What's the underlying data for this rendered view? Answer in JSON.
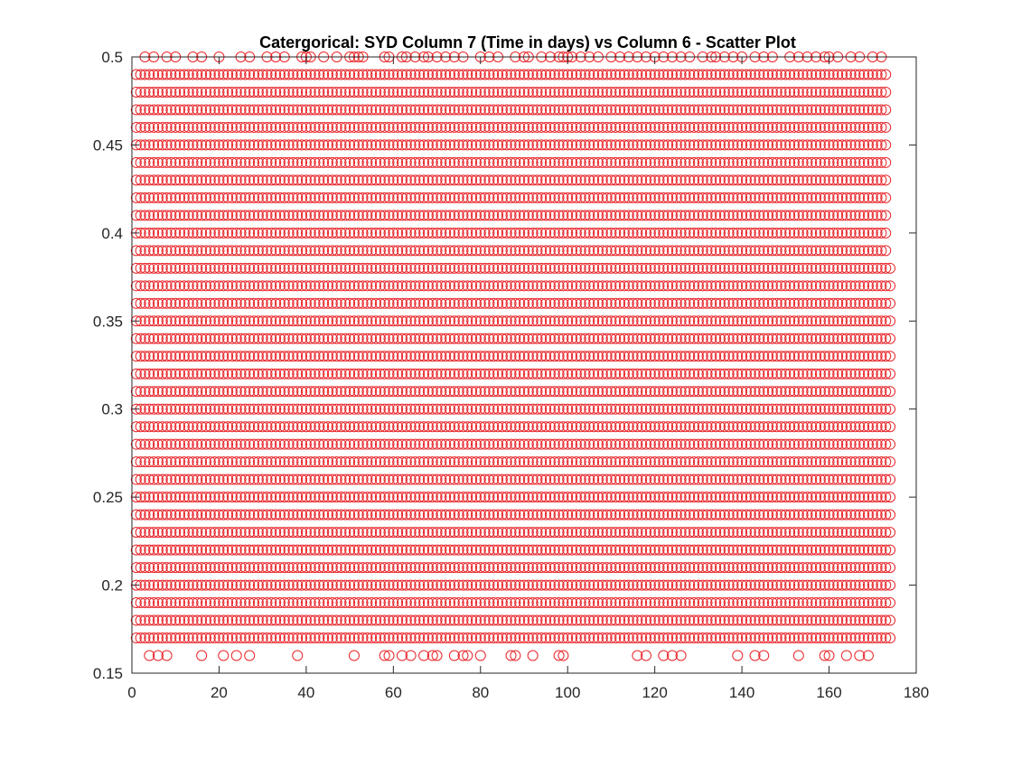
{
  "chart_data": {
    "type": "scatter",
    "title": "Catergorical: SYD Column 7 (Time in days) vs Column 6 - Scatter Plot",
    "xlabel": "",
    "ylabel": "",
    "xlim": [
      0,
      180
    ],
    "ylim": [
      0.15,
      0.5
    ],
    "x_ticks": [
      "0",
      "20",
      "40",
      "60",
      "80",
      "100",
      "120",
      "140",
      "160",
      "180"
    ],
    "y_ticks": [
      "0.15",
      "0.2",
      "0.25",
      "0.3",
      "0.35",
      "0.4",
      "0.45",
      "0.5"
    ],
    "grid": false,
    "legend": "none",
    "marker": "circle",
    "marker_color": "#e8262a",
    "description": "Column 6 takes values 0.16 to 0.50 in steps of 0.01; each row below is one y category with the x (days) values where points occur",
    "rows": [
      {
        "y": 0.5,
        "x": [
          3,
          5,
          8,
          10,
          14,
          16,
          20,
          25,
          27,
          31,
          33,
          35,
          39,
          40,
          41,
          44,
          47,
          50,
          51,
          52,
          53,
          58,
          59,
          62,
          63,
          65,
          67,
          68,
          70,
          72,
          74,
          76,
          80,
          82,
          84,
          88,
          90,
          91,
          94,
          96,
          98,
          99,
          100,
          101,
          103,
          105,
          107,
          110,
          112,
          114,
          116,
          118,
          120,
          122,
          124,
          126,
          128,
          131,
          133,
          134,
          136,
          138,
          140,
          143,
          145,
          147,
          151,
          153,
          155,
          157,
          159,
          160,
          162,
          165,
          167,
          170,
          172
        ],
        "range": null
      },
      {
        "y": 0.49,
        "range": [
          1,
          173
        ]
      },
      {
        "y": 0.48,
        "range": [
          1,
          173
        ]
      },
      {
        "y": 0.47,
        "range": [
          1,
          173
        ]
      },
      {
        "y": 0.46,
        "range": [
          1,
          173
        ]
      },
      {
        "y": 0.45,
        "range": [
          1,
          173
        ]
      },
      {
        "y": 0.44,
        "range": [
          1,
          173
        ]
      },
      {
        "y": 0.43,
        "range": [
          1,
          173
        ]
      },
      {
        "y": 0.42,
        "range": [
          1,
          173
        ]
      },
      {
        "y": 0.41,
        "range": [
          1,
          173
        ]
      },
      {
        "y": 0.4,
        "range": [
          1,
          173
        ]
      },
      {
        "y": 0.39,
        "range": [
          1,
          173
        ]
      },
      {
        "y": 0.38,
        "range": [
          1,
          174
        ]
      },
      {
        "y": 0.37,
        "range": [
          1,
          174
        ]
      },
      {
        "y": 0.36,
        "range": [
          1,
          174
        ]
      },
      {
        "y": 0.35,
        "range": [
          1,
          174
        ]
      },
      {
        "y": 0.34,
        "range": [
          1,
          174
        ]
      },
      {
        "y": 0.33,
        "range": [
          1,
          174
        ]
      },
      {
        "y": 0.32,
        "range": [
          1,
          174
        ]
      },
      {
        "y": 0.31,
        "range": [
          1,
          174
        ]
      },
      {
        "y": 0.3,
        "range": [
          1,
          174
        ]
      },
      {
        "y": 0.29,
        "range": [
          1,
          174
        ]
      },
      {
        "y": 0.28,
        "range": [
          1,
          174
        ]
      },
      {
        "y": 0.27,
        "range": [
          1,
          174
        ]
      },
      {
        "y": 0.26,
        "range": [
          1,
          174
        ]
      },
      {
        "y": 0.25,
        "range": [
          1,
          174
        ]
      },
      {
        "y": 0.24,
        "range": [
          1,
          174
        ]
      },
      {
        "y": 0.23,
        "range": [
          1,
          174
        ]
      },
      {
        "y": 0.22,
        "range": [
          1,
          174
        ]
      },
      {
        "y": 0.21,
        "range": [
          1,
          174
        ]
      },
      {
        "y": 0.2,
        "range": [
          1,
          174
        ]
      },
      {
        "y": 0.19,
        "range": [
          1,
          174
        ]
      },
      {
        "y": 0.18,
        "range": [
          1,
          174
        ]
      },
      {
        "y": 0.17,
        "range": [
          1,
          174
        ]
      },
      {
        "y": 0.16,
        "x": [
          4,
          6,
          8,
          16,
          21,
          24,
          27,
          38,
          51,
          58,
          59,
          62,
          64,
          67,
          69,
          70,
          74,
          76,
          77,
          80,
          87,
          88,
          92,
          98,
          99,
          116,
          118,
          122,
          124,
          126,
          139,
          143,
          145,
          153,
          159,
          160,
          164,
          167,
          169
        ],
        "range": null
      }
    ]
  }
}
